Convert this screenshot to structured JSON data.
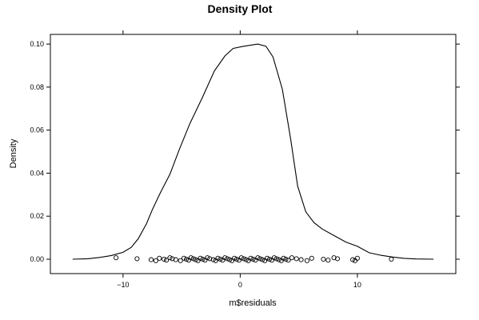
{
  "chart_data": {
    "type": "line",
    "title": "Density Plot",
    "xlabel": "m$residuals",
    "ylabel": "Density",
    "xlim": [
      -16.2,
      18.4
    ],
    "ylim": [
      -0.0067,
      0.1045
    ],
    "x_ticks": [
      -10,
      0,
      10
    ],
    "x_tick_labels": [
      "−10",
      "0",
      "10"
    ],
    "y_ticks": [
      0.0,
      0.02,
      0.04,
      0.06,
      0.08,
      0.1
    ],
    "y_tick_labels": [
      "0.00",
      "0.02",
      "0.04",
      "0.06",
      "0.08",
      "0.10"
    ],
    "grid": false,
    "series": [
      {
        "points": [
          [
            -14.3,
            0.0
          ],
          [
            -13.0,
            0.0002
          ],
          [
            -12.0,
            0.0008
          ],
          [
            -11.0,
            0.0017
          ],
          [
            -10.0,
            0.0032
          ],
          [
            -9.3,
            0.0055
          ],
          [
            -8.7,
            0.0095
          ],
          [
            -8.0,
            0.0165
          ],
          [
            -7.5,
            0.023
          ],
          [
            -6.8,
            0.031
          ],
          [
            -6.0,
            0.0395
          ],
          [
            -5.2,
            0.051
          ],
          [
            -4.3,
            0.063
          ],
          [
            -3.2,
            0.0755
          ],
          [
            -2.2,
            0.0875
          ],
          [
            -1.3,
            0.0945
          ],
          [
            -0.6,
            0.098
          ],
          [
            0.3,
            0.099
          ],
          [
            1.5,
            0.1
          ],
          [
            2.2,
            0.099
          ],
          [
            2.8,
            0.094
          ],
          [
            3.6,
            0.079
          ],
          [
            4.3,
            0.056
          ],
          [
            4.9,
            0.034
          ],
          [
            5.6,
            0.022
          ],
          [
            6.3,
            0.017
          ],
          [
            7.0,
            0.014
          ],
          [
            8.0,
            0.011
          ],
          [
            9.0,
            0.008
          ],
          [
            10.0,
            0.006
          ],
          [
            11.0,
            0.003
          ],
          [
            12.0,
            0.0018
          ],
          [
            13.0,
            0.001
          ],
          [
            14.0,
            0.0004
          ],
          [
            15.0,
            0.0001
          ],
          [
            16.5,
            0.0
          ]
        ]
      }
    ],
    "rug": {
      "y": 0.0,
      "x": [
        -10.6,
        -8.8,
        -7.6,
        -7.2,
        -6.9,
        -6.5,
        -6.3,
        -6.0,
        -5.8,
        -5.5,
        -5.1,
        -4.8,
        -4.6,
        -4.4,
        -4.2,
        -4.0,
        -3.8,
        -3.6,
        -3.4,
        -3.2,
        -3.0,
        -2.8,
        -2.6,
        -2.3,
        -2.1,
        -1.9,
        -1.7,
        -1.5,
        -1.3,
        -1.1,
        -0.9,
        -0.7,
        -0.5,
        -0.3,
        -0.1,
        0.1,
        0.3,
        0.5,
        0.7,
        0.9,
        1.1,
        1.3,
        1.5,
        1.7,
        1.9,
        2.1,
        2.3,
        2.5,
        2.7,
        2.9,
        3.1,
        3.3,
        3.5,
        3.7,
        3.9,
        4.1,
        4.4,
        4.8,
        5.2,
        5.7,
        6.1,
        7.1,
        7.5,
        8.0,
        8.3,
        9.6,
        9.8,
        10.0,
        12.9
      ]
    }
  }
}
